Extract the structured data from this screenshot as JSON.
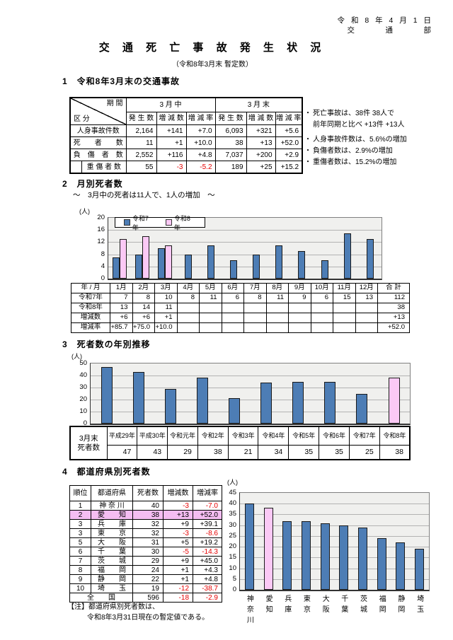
{
  "page": {
    "date_line": "令 和 8 年 4 月 1 日",
    "dept_line": "交　　　通　　　部",
    "title": "交 通 死 亡 事 故 発 生 状 況",
    "subtitle": "（令和8年3月末 暫定数）"
  },
  "section1": {
    "heading": "1　令和8年3月末の交通事故",
    "table": {
      "corner_top": "期 間",
      "corner_bottom": "区 分",
      "col_groups": [
        "3 月 中",
        "3 月 末"
      ],
      "sub_headers": [
        "発 生 数",
        "増 減 数",
        "増 減 率",
        "発 生 数",
        "増 減 数",
        "増 減 率"
      ],
      "rows": [
        {
          "label": "人身事故件数",
          "values": [
            "2,164",
            "+141",
            "+7.0",
            "6,093",
            "+321",
            "+5.6"
          ]
        },
        {
          "label": "死　　者　　数",
          "values": [
            "11",
            "+1",
            "+10.0",
            "38",
            "+13",
            "+52.0"
          ]
        },
        {
          "label": "負　傷　者　数",
          "values": [
            "2,552",
            "+116",
            "+4.8",
            "7,037",
            "+200",
            "+2.9"
          ]
        },
        {
          "label": "重 傷 者 数",
          "indent": true,
          "values": [
            "55",
            "-3",
            "-5.2",
            "189",
            "+25",
            "+15.2"
          ]
        }
      ]
    },
    "notes": [
      {
        "bullet": "・",
        "text": "死亡事故は、38件 38人で"
      },
      {
        "bullet": "",
        "text": "前年同期と比べ +13件 +13人"
      },
      {
        "bullet": "・",
        "text": "人身事故件数は、5.6%の増加",
        "gap": true
      },
      {
        "bullet": "・",
        "text": "負傷者数は、2.9%の増加"
      },
      {
        "bullet": "・",
        "text": "重傷者数は、15.2%の増加"
      }
    ]
  },
  "section2": {
    "heading": "2　月別死者数",
    "subheading": "～　3月中の死者は11人で、1人の増加　～",
    "table": {
      "header": [
        "年 / 月",
        "1月",
        "2月",
        "3月",
        "4月",
        "5月",
        "6月",
        "7月",
        "8月",
        "9月",
        "10月",
        "11月",
        "12月",
        "合 計"
      ],
      "rows": [
        {
          "label": "令和7年",
          "values": [
            "7",
            "8",
            "10",
            "8",
            "11",
            "6",
            "8",
            "11",
            "9",
            "6",
            "15",
            "13",
            "112"
          ]
        },
        {
          "label": "令和8年",
          "values": [
            "13",
            "14",
            "11",
            "",
            "",
            "",
            "",
            "",
            "",
            "",
            "",
            "",
            "38"
          ]
        },
        {
          "label": "増減数",
          "values": [
            "+6",
            "+6",
            "+1",
            "",
            "",
            "",
            "",
            "",
            "",
            "",
            "",
            "",
            "+13"
          ]
        },
        {
          "label": "増減率",
          "values": [
            "+85.7",
            "+75.0",
            "+10.0",
            "",
            "",
            "",
            "",
            "",
            "",
            "",
            "",
            "",
            "+52.0"
          ]
        }
      ]
    }
  },
  "section3": {
    "heading": "3　死者数の年別推移",
    "table": {
      "label_lines": [
        "3月末",
        "死者数"
      ],
      "years": [
        "平成29年",
        "平成30年",
        "令和元年",
        "令和2年",
        "令和3年",
        "令和4年",
        "令和5年",
        "令和6年",
        "令和7年",
        "令和8年"
      ],
      "values": [
        "47",
        "43",
        "29",
        "38",
        "21",
        "34",
        "35",
        "35",
        "25",
        "38"
      ]
    }
  },
  "section4": {
    "heading": "4　都道府県別死者数",
    "table": {
      "headers": [
        "順位",
        "都道府県",
        "死者数",
        "増減数",
        "増減率"
      ],
      "rows": [
        {
          "cells": [
            "1",
            "神 奈 川",
            "40",
            "-3",
            "-7.0"
          ]
        },
        {
          "cells": [
            "2",
            "愛　　知",
            "38",
            "+13",
            "+52.0"
          ],
          "highlight": true
        },
        {
          "cells": [
            "3",
            "兵　　庫",
            "32",
            "+9",
            "+39.1"
          ]
        },
        {
          "cells": [
            "3",
            "東　　京",
            "32",
            "-3",
            "-8.6"
          ]
        },
        {
          "cells": [
            "5",
            "大　　阪",
            "31",
            "+5",
            "+19.2"
          ]
        },
        {
          "cells": [
            "6",
            "千　　葉",
            "30",
            "-5",
            "-14.3"
          ]
        },
        {
          "cells": [
            "7",
            "茨　　城",
            "29",
            "+9",
            "+45.0"
          ]
        },
        {
          "cells": [
            "8",
            "福　　岡",
            "24",
            "+1",
            "+4.3"
          ]
        },
        {
          "cells": [
            "9",
            "静　　岡",
            "22",
            "+1",
            "+4.8"
          ]
        },
        {
          "cells": [
            "10",
            "埼　　玉",
            "19",
            "-12",
            "-38.7"
          ]
        }
      ],
      "total_row": {
        "label": "全　　国",
        "values": [
          "596",
          "-18",
          "-2.9"
        ]
      }
    },
    "note_line1": "【注】都道府県別死者数は、",
    "note_line2": "令和8年3月31日現在の暫定値である。"
  },
  "chart_data": [
    {
      "type": "bar",
      "title": "月別死者数",
      "unit_label": "(人)",
      "categories": [
        "1月",
        "2月",
        "3月",
        "4月",
        "5月",
        "6月",
        "7月",
        "8月",
        "9月",
        "10月",
        "11月",
        "12月"
      ],
      "series": [
        {
          "name": "令和7年",
          "color": "#4d7db5",
          "values": [
            7,
            8,
            10,
            8,
            11,
            6,
            8,
            11,
            9,
            6,
            15,
            13
          ]
        },
        {
          "name": "令和8年",
          "color": "#fbc9f5",
          "values": [
            13,
            14,
            11,
            null,
            null,
            null,
            null,
            null,
            null,
            null,
            null,
            null
          ]
        }
      ],
      "ylim": [
        0,
        20
      ],
      "ytick_step": 4,
      "grid": true,
      "legend_position": "top-left"
    },
    {
      "type": "bar",
      "title": "死者数の年別推移",
      "unit_label": "(人)",
      "categories": [
        "平成29年",
        "平成30年",
        "令和元年",
        "令和2年",
        "令和3年",
        "令和4年",
        "令和5年",
        "令和6年",
        "令和7年",
        "令和8年"
      ],
      "values": [
        47,
        43,
        29,
        38,
        21,
        34,
        35,
        35,
        25,
        38
      ],
      "bar_color": "#4d7db5",
      "highlight_index": 9,
      "highlight_color": "#fbc9f5",
      "ylim": [
        0,
        50
      ],
      "ytick_step": 10,
      "grid": true
    },
    {
      "type": "bar",
      "title": "都道府県別死者数",
      "unit_label": "(人)",
      "categories": [
        "神奈川",
        "愛知",
        "兵庫",
        "東京",
        "大阪",
        "千葉",
        "茨城",
        "福岡",
        "静岡",
        "埼玉"
      ],
      "values": [
        40,
        38,
        32,
        32,
        31,
        30,
        29,
        24,
        22,
        19
      ],
      "bar_color": "#4d7db5",
      "highlight_index": 1,
      "highlight_color": "#fbc9f5",
      "ylim": [
        0,
        45
      ],
      "ytick_step": 5,
      "grid": true,
      "x_labels_vertical": true
    }
  ]
}
